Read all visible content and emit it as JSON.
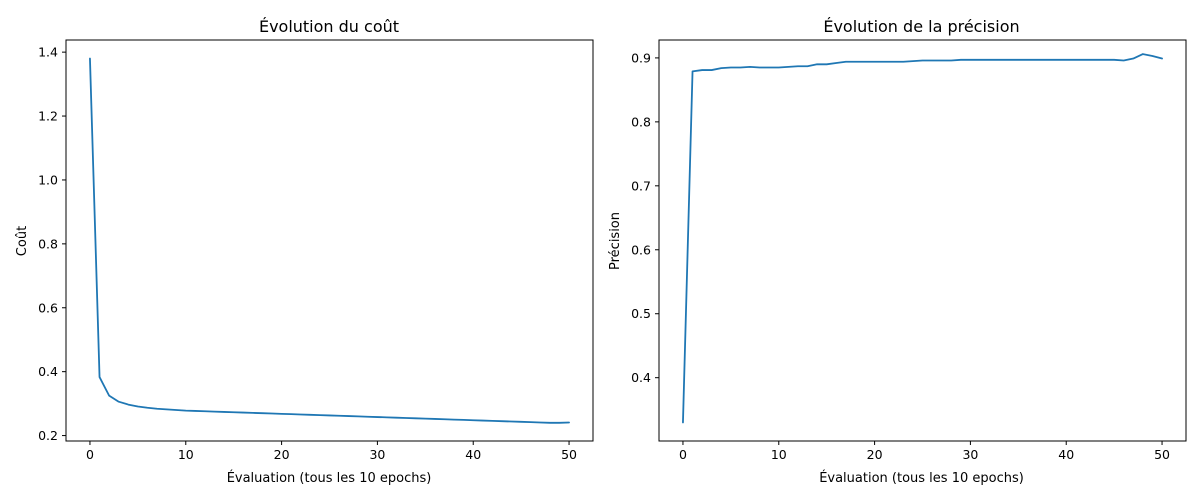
{
  "chart_data": [
    {
      "type": "line",
      "title": "Évolution du coût",
      "xlabel": "Évaluation (tous les 10 epochs)",
      "ylabel": "Coût",
      "xlim": [
        -2.5,
        52.5
      ],
      "ylim": [
        0.183,
        1.438
      ],
      "xticks": [
        0,
        10,
        20,
        30,
        40,
        50
      ],
      "yticks": [
        0.2,
        0.4,
        0.6,
        0.8,
        1.0,
        1.2,
        1.4
      ],
      "xtick_labels": [
        "0",
        "10",
        "20",
        "30",
        "40",
        "50"
      ],
      "ytick_labels": [
        "0.2",
        "0.4",
        "0.6",
        "0.8",
        "1.0",
        "1.2",
        "1.4"
      ],
      "grid": false,
      "color": "#1f77b4",
      "x": [
        0,
        1,
        2,
        3,
        4,
        5,
        6,
        7,
        8,
        9,
        10,
        11,
        12,
        13,
        14,
        15,
        16,
        17,
        18,
        19,
        20,
        21,
        22,
        23,
        24,
        25,
        26,
        27,
        28,
        29,
        30,
        31,
        32,
        33,
        34,
        35,
        36,
        37,
        38,
        39,
        40,
        41,
        42,
        43,
        44,
        45,
        46,
        47,
        48,
        49,
        50
      ],
      "values": [
        1.38,
        0.383,
        0.325,
        0.306,
        0.297,
        0.291,
        0.287,
        0.284,
        0.282,
        0.28,
        0.278,
        0.277,
        0.276,
        0.275,
        0.274,
        0.273,
        0.272,
        0.271,
        0.27,
        0.269,
        0.268,
        0.267,
        0.266,
        0.265,
        0.264,
        0.263,
        0.262,
        0.261,
        0.26,
        0.259,
        0.258,
        0.257,
        0.256,
        0.255,
        0.254,
        0.253,
        0.252,
        0.251,
        0.25,
        0.249,
        0.248,
        0.247,
        0.246,
        0.245,
        0.244,
        0.243,
        0.242,
        0.241,
        0.24,
        0.24,
        0.241
      ]
    },
    {
      "type": "line",
      "title": "Évolution de la précision",
      "xlabel": "Évaluation (tous les 10 epochs)",
      "ylabel": "Précision",
      "xlim": [
        -2.5,
        52.5
      ],
      "ylim": [
        0.301,
        0.928
      ],
      "xticks": [
        0,
        10,
        20,
        30,
        40,
        50
      ],
      "yticks": [
        0.4,
        0.5,
        0.6,
        0.7,
        0.8,
        0.9
      ],
      "xtick_labels": [
        "0",
        "10",
        "20",
        "30",
        "40",
        "50"
      ],
      "ytick_labels": [
        "0.4",
        "0.5",
        "0.6",
        "0.7",
        "0.8",
        "0.9"
      ],
      "grid": false,
      "color": "#1f77b4",
      "x": [
        0,
        1,
        2,
        3,
        4,
        5,
        6,
        7,
        8,
        9,
        10,
        11,
        12,
        13,
        14,
        15,
        16,
        17,
        18,
        19,
        20,
        21,
        22,
        23,
        24,
        25,
        26,
        27,
        28,
        29,
        30,
        31,
        32,
        33,
        34,
        35,
        36,
        37,
        38,
        39,
        40,
        41,
        42,
        43,
        44,
        45,
        46,
        47,
        48,
        49,
        50
      ],
      "values": [
        0.33,
        0.879,
        0.881,
        0.881,
        0.884,
        0.885,
        0.885,
        0.886,
        0.885,
        0.885,
        0.885,
        0.886,
        0.887,
        0.887,
        0.89,
        0.89,
        0.892,
        0.894,
        0.894,
        0.894,
        0.894,
        0.894,
        0.894,
        0.894,
        0.895,
        0.896,
        0.896,
        0.896,
        0.896,
        0.897,
        0.897,
        0.897,
        0.897,
        0.897,
        0.897,
        0.897,
        0.897,
        0.897,
        0.897,
        0.897,
        0.897,
        0.897,
        0.897,
        0.897,
        0.897,
        0.897,
        0.896,
        0.899,
        0.906,
        0.903,
        0.899
      ]
    }
  ]
}
